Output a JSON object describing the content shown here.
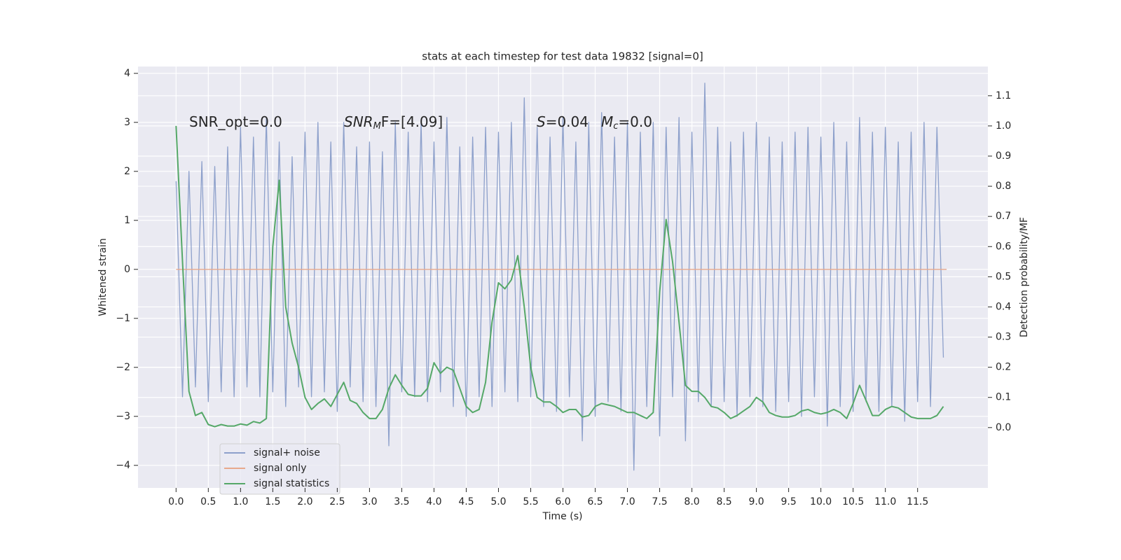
{
  "chart_data": {
    "type": "line",
    "title": "stats at each timestep for test data 19832 [signal=0]",
    "xlabel": "Time (s)",
    "ylabel": "Whitened strain",
    "y2label": "Detection probability/MF",
    "annotations": [
      [
        "SNR_opt=0.0"
      ],
      [
        "SNR",
        "M",
        "F=[4.09]"
      ],
      [
        "S",
        "=0.04"
      ],
      [
        "M",
        "c",
        "=0.0"
      ]
    ],
    "grid": true,
    "xlim": [
      -0.59,
      12.59
    ],
    "ylim": [
      -4.46,
      4.14
    ],
    "y2lim": [
      -0.2,
      1.197
    ],
    "xticks": [
      {
        "value": 0.0,
        "label": "0.0"
      },
      0.5,
      {
        "value": 1.0,
        "label": "1.0"
      },
      1.5,
      {
        "value": 2.0,
        "label": "2.0"
      },
      2.5,
      {
        "value": 3.0,
        "label": "3.0"
      },
      3.5,
      {
        "value": 4.0,
        "label": "4.0"
      },
      4.5,
      {
        "value": 5.0,
        "label": "5.0"
      },
      5.5,
      {
        "value": 6.0,
        "label": "6.0"
      },
      6.5,
      {
        "value": 7.0,
        "label": "7.0"
      },
      7.5,
      {
        "value": 8.0,
        "label": "8.0"
      },
      8.5,
      {
        "value": 9.0,
        "label": "9.0"
      },
      9.5,
      {
        "value": 10.0,
        "label": "10.0"
      },
      10.5,
      {
        "value": 11.0,
        "label": "11.0"
      },
      11.5
    ],
    "yticks": [
      {
        "value": -4,
        "label": "−4"
      },
      {
        "value": -3,
        "label": "−3"
      },
      {
        "value": -2,
        "label": "−2"
      },
      {
        "value": -1,
        "label": "−1"
      },
      0,
      1,
      2,
      3,
      4
    ],
    "y2ticks": [
      {
        "value": 0.0,
        "label": "0.0"
      },
      0.1,
      0.2,
      0.3,
      0.4,
      0.5,
      0.6,
      0.7,
      0.8,
      0.9,
      {
        "value": 1.0,
        "label": "1.0"
      },
      1.1
    ],
    "x": [
      0.0,
      0.1,
      0.2,
      0.3,
      0.4,
      0.5,
      0.6,
      0.7,
      0.8,
      0.9,
      1.0,
      1.1,
      1.2,
      1.3,
      1.4,
      1.5,
      1.6,
      1.7,
      1.8,
      1.9,
      2.0,
      2.1,
      2.2,
      2.3,
      2.4,
      2.5,
      2.6,
      2.7,
      2.8,
      2.9,
      3.0,
      3.1,
      3.2,
      3.3,
      3.4,
      3.5,
      3.6,
      3.7,
      3.8,
      3.9,
      4.0,
      4.1,
      4.2,
      4.3,
      4.4,
      4.5,
      4.6,
      4.7,
      4.8,
      4.9,
      5.0,
      5.1,
      5.2,
      5.3,
      5.4,
      5.5,
      5.6,
      5.7,
      5.8,
      5.9,
      6.0,
      6.1,
      6.2,
      6.3,
      6.4,
      6.5,
      6.6,
      6.7,
      6.8,
      6.9,
      7.0,
      7.1,
      7.2,
      7.3,
      7.4,
      7.5,
      7.6,
      7.7,
      7.8,
      7.9,
      8.0,
      8.1,
      8.2,
      8.3,
      8.4,
      8.5,
      8.6,
      8.7,
      8.8,
      8.9,
      9.0,
      9.1,
      9.2,
      9.3,
      9.4,
      9.5,
      9.6,
      9.7,
      9.8,
      9.9,
      10.0,
      10.1,
      10.2,
      10.3,
      10.4,
      10.5,
      10.6,
      10.7,
      10.8,
      10.9,
      11.0,
      11.1,
      11.2,
      11.3,
      11.4,
      11.5,
      11.6,
      11.7,
      11.8,
      11.9
    ],
    "series": [
      {
        "name": "signal+ noise",
        "color": "#8da0cb",
        "values": [
          1.8,
          -2.6,
          2.0,
          -2.4,
          2.2,
          -2.7,
          2.1,
          -2.5,
          2.5,
          -2.6,
          2.9,
          -2.4,
          2.7,
          -2.6,
          3.1,
          -2.5,
          2.6,
          -2.8,
          2.3,
          -2.4,
          2.8,
          -2.6,
          3.0,
          -2.5,
          2.6,
          -2.9,
          3.0,
          -2.4,
          2.5,
          -2.7,
          2.6,
          -2.8,
          2.4,
          -3.6,
          3.0,
          -2.5,
          2.8,
          -2.6,
          3.0,
          -2.7,
          2.6,
          -2.5,
          3.1,
          -2.8,
          2.5,
          -3.0,
          2.7,
          -2.6,
          2.9,
          -2.8,
          2.8,
          -2.5,
          3.0,
          -2.7,
          3.5,
          -2.6,
          2.9,
          -2.8,
          2.7,
          -2.9,
          3.1,
          -2.6,
          2.6,
          -3.5,
          3.0,
          -3.0,
          3.2,
          -2.7,
          2.7,
          -2.9,
          3.0,
          -4.1,
          2.8,
          -2.8,
          3.0,
          -3.4,
          2.9,
          -2.6,
          3.1,
          -3.5,
          2.8,
          -2.7,
          3.8,
          -2.8,
          2.9,
          -2.7,
          2.6,
          -3.0,
          2.8,
          -2.6,
          3.0,
          -2.8,
          2.7,
          -2.9,
          2.6,
          -2.7,
          2.8,
          -3.0,
          2.9,
          -2.6,
          2.7,
          -3.2,
          3.0,
          -2.8,
          2.6,
          -2.9,
          3.1,
          -2.7,
          2.8,
          -2.9,
          2.9,
          -2.8,
          2.6,
          -3.1,
          2.8,
          -2.7,
          3.0,
          -2.8,
          2.9,
          -1.8
        ]
      },
      {
        "name": "signal only",
        "color": "#e8a98c",
        "x": [
          0.0,
          11.95
        ],
        "values": [
          0,
          0
        ]
      },
      {
        "name": "signal statistics",
        "color": "#55a868",
        "axis": "y2",
        "values": [
          1.0,
          0.55,
          0.12,
          0.04,
          0.05,
          0.01,
          0.003,
          0.01,
          0.005,
          0.005,
          0.012,
          0.008,
          0.02,
          0.015,
          0.03,
          0.6,
          0.82,
          0.4,
          0.28,
          0.2,
          0.1,
          0.06,
          0.08,
          0.095,
          0.07,
          0.11,
          0.15,
          0.09,
          0.08,
          0.05,
          0.03,
          0.03,
          0.06,
          0.13,
          0.175,
          0.14,
          0.11,
          0.105,
          0.105,
          0.13,
          0.215,
          0.18,
          0.2,
          0.19,
          0.13,
          0.07,
          0.05,
          0.06,
          0.15,
          0.35,
          0.48,
          0.46,
          0.49,
          0.57,
          0.4,
          0.2,
          0.1,
          0.085,
          0.085,
          0.07,
          0.05,
          0.06,
          0.06,
          0.035,
          0.04,
          0.07,
          0.08,
          0.075,
          0.07,
          0.06,
          0.05,
          0.05,
          0.04,
          0.03,
          0.05,
          0.45,
          0.69,
          0.55,
          0.35,
          0.14,
          0.12,
          0.12,
          0.1,
          0.07,
          0.065,
          0.05,
          0.03,
          0.04,
          0.055,
          0.07,
          0.1,
          0.085,
          0.05,
          0.04,
          0.035,
          0.035,
          0.04,
          0.055,
          0.06,
          0.05,
          0.045,
          0.05,
          0.06,
          0.05,
          0.03,
          0.08,
          0.14,
          0.09,
          0.04,
          0.04,
          0.06,
          0.07,
          0.065,
          0.05,
          0.035,
          0.03,
          0.03,
          0.03,
          0.04,
          0.07
        ]
      }
    ]
  }
}
